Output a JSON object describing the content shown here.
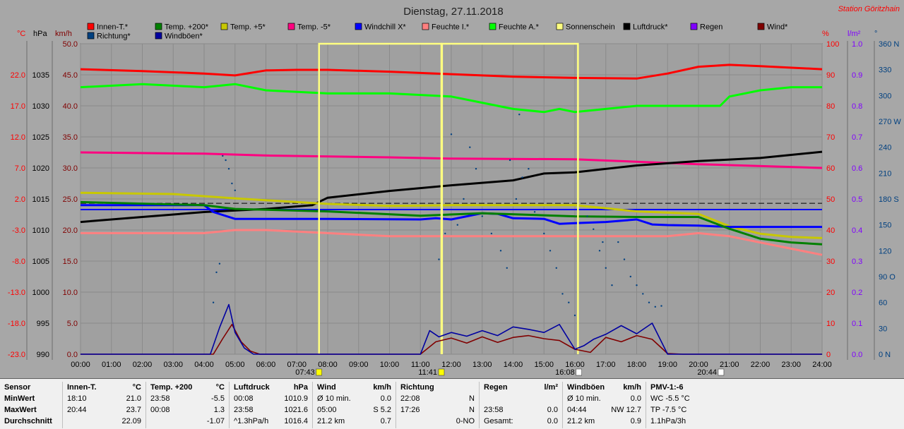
{
  "header": {
    "title": "Dienstag, 27.11.2018",
    "station": "Station Göritzhain",
    "station_color": "#ff0000"
  },
  "legend": [
    {
      "label": "Innen-T.*",
      "color": "#ff0000"
    },
    {
      "label": "Temp. +200*",
      "color": "#008000"
    },
    {
      "label": "Temp. +5*",
      "color": "#c8c800"
    },
    {
      "label": "Temp. -5*",
      "color": "#ff0080"
    },
    {
      "label": "Windchill X*",
      "color": "#0000ff"
    },
    {
      "label": "Feuchte I.*",
      "color": "#ff8080"
    },
    {
      "label": "Feuchte A.*",
      "color": "#00ff00"
    },
    {
      "label": "Sonnenschein",
      "color": "#ffff80"
    },
    {
      "label": "Luftdruck*",
      "color": "#000000"
    },
    {
      "label": "Regen",
      "color": "#8000ff"
    },
    {
      "label": "Wind*",
      "color": "#800000"
    },
    {
      "label": "Richtung*",
      "color": "#004080"
    },
    {
      "label": "Windböen*",
      "color": "#0000a0"
    }
  ],
  "axes": {
    "left_units": [
      {
        "label": "°C",
        "color": "#ff0000"
      },
      {
        "label": "hPa",
        "color": "#000000"
      },
      {
        "label": "km/h",
        "color": "#800000"
      }
    ],
    "right_units": [
      {
        "label": "%",
        "color": "#ff0000"
      },
      {
        "label": "l/m²",
        "color": "#8000ff"
      },
      {
        "label": "°",
        "color": "#004080"
      }
    ],
    "temp_ticks": [
      "22.0",
      "17.0",
      "12.0",
      "7.0",
      "2.0",
      "-3.0",
      "-8.0",
      "-13.0",
      "-18.0",
      "-23.0"
    ],
    "pressure_ticks": [
      "1035",
      "1030",
      "1025",
      "1020",
      "1015",
      "1010",
      "1005",
      "1000",
      "995",
      "990"
    ],
    "wind_ticks": [
      "50.0",
      "45.0",
      "40.0",
      "35.0",
      "30.0",
      "25.0",
      "20.0",
      "15.0",
      "10.0",
      "5.0",
      "0.0"
    ],
    "humidity_ticks": [
      "100",
      "90",
      "80",
      "70",
      "60",
      "50",
      "40",
      "30",
      "20",
      "10",
      "0"
    ],
    "rain_ticks": [
      "1.0",
      "0.9",
      "0.8",
      "0.7",
      "0.6",
      "0.5",
      "0.4",
      "0.3",
      "0.2",
      "0.1",
      "0.0"
    ],
    "dir_ticks": [
      "360 N",
      "330",
      "300",
      "270 W",
      "240",
      "210",
      "180 S",
      "150",
      "120",
      "90 O",
      "60",
      "30",
      "0 N"
    ],
    "time_ticks": [
      "00:00",
      "01:00",
      "02:00",
      "03:00",
      "04:00",
      "05:00",
      "06:00",
      "07:00",
      "08:00",
      "09:00",
      "10:00",
      "11:00",
      "12:00",
      "13:00",
      "14:00",
      "15:00",
      "16:00",
      "17:00",
      "18:00",
      "19:00",
      "20:00",
      "21:00",
      "22:00",
      "23:00",
      "24:00"
    ],
    "events": [
      {
        "label": "07:43",
        "hour": 7.72,
        "color": "#ffff00"
      },
      {
        "label": "11:41",
        "hour": 11.68,
        "color": "#ffff00"
      },
      {
        "label": "16:08",
        "hour": 16.13,
        "color": "#ffffff"
      },
      {
        "label": "20:44",
        "hour": 20.73,
        "color": "#ffffff"
      }
    ]
  },
  "chart_data": {
    "type": "line",
    "x_range": [
      "00:00",
      "24:00"
    ],
    "grid": true,
    "series": [
      {
        "name": "Innen-T.*",
        "color": "#ff0000",
        "axis": "temp",
        "x": [
          0,
          2,
          4,
          5,
          6,
          7,
          8,
          10,
          12,
          14,
          16,
          18,
          19,
          20,
          21,
          22,
          24
        ],
        "values": [
          22.9,
          22.6,
          22.2,
          21.9,
          22.7,
          22.8,
          22.8,
          22.5,
          22.1,
          21.7,
          21.5,
          21.4,
          22.2,
          23.3,
          23.6,
          23.4,
          22.9
        ]
      },
      {
        "name": "Feuchte A.*",
        "color": "#00ff00",
        "axis": "humidity",
        "x": [
          0,
          2,
          4,
          5,
          6,
          8,
          10,
          12,
          13,
          14,
          15,
          15.5,
          16,
          17,
          18,
          19,
          20,
          20.7,
          21,
          22,
          23,
          24
        ],
        "values": [
          86,
          87,
          86,
          87,
          85,
          84,
          84,
          83,
          81,
          79,
          78,
          79,
          78,
          79,
          80,
          80,
          80,
          80,
          83,
          85,
          86,
          86
        ]
      },
      {
        "name": "Temp. -5*",
        "color": "#ff0080",
        "axis": "temp",
        "x": [
          0,
          4,
          6,
          10,
          12,
          16,
          20,
          24
        ],
        "values": [
          9.5,
          9.3,
          9.0,
          8.7,
          8.5,
          8.4,
          7.6,
          7.0
        ]
      },
      {
        "name": "Luftdruck*",
        "color": "#000000",
        "axis": "pressure",
        "x": [
          0,
          2,
          4,
          6,
          7.5,
          8,
          10,
          12,
          14,
          15,
          16,
          18,
          20,
          22,
          23,
          24
        ],
        "values": [
          1011.3,
          1012.1,
          1012.9,
          1013.4,
          1014.0,
          1015.2,
          1016.3,
          1017.2,
          1018.0,
          1019.1,
          1019.3,
          1020.4,
          1021.1,
          1021.6,
          1022.1,
          1022.6
        ]
      },
      {
        "name": "Temp. +5*",
        "color": "#c8c800",
        "axis": "temp",
        "x": [
          0,
          3,
          5,
          7,
          8,
          10,
          12,
          16,
          18,
          19,
          20,
          21,
          22,
          23,
          24
        ],
        "values": [
          3.0,
          2.8,
          2.1,
          1.5,
          1.2,
          0.9,
          1.0,
          1.0,
          0.0,
          -0.2,
          -0.4,
          -2.4,
          -3.6,
          -4.1,
          -4.3
        ]
      },
      {
        "name": "Windchill X*",
        "color": "#0000ff",
        "axis": "temp",
        "x": [
          0,
          4,
          4.3,
          5,
          8,
          11,
          11.5,
          12,
          13,
          13.5,
          14,
          15,
          15.5,
          16,
          17,
          18,
          18.5,
          19,
          20,
          21,
          24
        ],
        "values": [
          1.0,
          1.0,
          -0.1,
          -1.2,
          -1.2,
          -1.3,
          -1.1,
          -1.3,
          -0.3,
          -0.4,
          -1.1,
          -1.2,
          -2.0,
          -1.9,
          -1.7,
          -1.3,
          -2.1,
          -2.2,
          -2.3,
          -2.5,
          -2.5
        ]
      },
      {
        "name": "Temp. +200*",
        "color": "#008000",
        "axis": "temp",
        "x": [
          0,
          4,
          5,
          8,
          11,
          13,
          16,
          18,
          19,
          20,
          21,
          22,
          23,
          24
        ],
        "values": [
          1.5,
          1.0,
          0.4,
          0.0,
          -0.7,
          -0.3,
          -0.8,
          -0.9,
          -0.9,
          -0.9,
          -2.8,
          -4.4,
          -5.0,
          -5.3
        ]
      },
      {
        "name": "Feuchte I.*",
        "color": "#ff8080",
        "axis": "humidity",
        "x": [
          0,
          4,
          5,
          6,
          8,
          10,
          12,
          14,
          16,
          18,
          19,
          20,
          21,
          22,
          24
        ],
        "values": [
          39,
          39,
          40,
          40,
          39,
          38,
          38,
          38,
          38,
          38,
          38,
          39,
          38,
          36,
          32
        ]
      },
      {
        "name": "Sonnenschein",
        "color": "#ffff80",
        "axis": "wind",
        "segments": [
          [
            7.72,
            11.68
          ],
          [
            11.7,
            16.1
          ]
        ],
        "level": 50
      },
      {
        "name": "Wind*",
        "color": "#800000",
        "axis": "wind",
        "x": [
          0,
          4.3,
          4.6,
          4.9,
          5.2,
          5.5,
          5.8,
          6,
          11,
          11.5,
          12,
          12.5,
          13,
          13.5,
          14,
          14.5,
          15,
          15.5,
          16,
          16.5,
          17,
          17.5,
          18,
          18.5,
          19,
          19.5,
          20,
          24
        ],
        "values": [
          0,
          0,
          2.5,
          4.8,
          2.0,
          0.5,
          0,
          0,
          0,
          2.0,
          2.6,
          1.8,
          2.8,
          1.9,
          2.7,
          3.0,
          2.5,
          2.2,
          0.8,
          0.3,
          2.7,
          2.0,
          3.0,
          2.4,
          0.1,
          0,
          0,
          0
        ]
      },
      {
        "name": "Windböen*",
        "color": "#0000a0",
        "axis": "wind",
        "x": [
          0,
          4.2,
          4.5,
          4.8,
          5.0,
          5.3,
          5.6,
          6,
          11,
          11.3,
          11.6,
          12,
          12.5,
          13,
          13.5,
          14,
          14.5,
          15,
          15.5,
          16,
          16.3,
          16.6,
          17,
          17.5,
          18,
          18.5,
          19,
          20,
          24
        ],
        "values": [
          0,
          0,
          4.3,
          8.0,
          3.5,
          1.0,
          0,
          0,
          0,
          3.8,
          2.8,
          3.5,
          2.9,
          3.8,
          3.0,
          4.4,
          4.0,
          3.5,
          4.8,
          0.8,
          1.4,
          2.4,
          3.2,
          4.6,
          3.3,
          5.0,
          0,
          0,
          0
        ]
      }
    ],
    "direction_scatter": {
      "name": "Richtung*",
      "color": "#004080",
      "axis": "direction",
      "points": [
        [
          4.6,
          230
        ],
        [
          4.7,
          225
        ],
        [
          4.8,
          215
        ],
        [
          4.9,
          198
        ],
        [
          5.0,
          190
        ],
        [
          4.5,
          105
        ],
        [
          4.4,
          95
        ],
        [
          4.3,
          60
        ],
        [
          11.6,
          110
        ],
        [
          11.8,
          140
        ],
        [
          12.2,
          150
        ],
        [
          12.4,
          180
        ],
        [
          12.8,
          215
        ],
        [
          13.0,
          160
        ],
        [
          13.3,
          140
        ],
        [
          13.6,
          120
        ],
        [
          13.8,
          100
        ],
        [
          14.1,
          180
        ],
        [
          14.3,
          205
        ],
        [
          14.5,
          215
        ],
        [
          14.7,
          165
        ],
        [
          15.0,
          140
        ],
        [
          15.2,
          120
        ],
        [
          15.4,
          100
        ],
        [
          15.6,
          70
        ],
        [
          15.8,
          60
        ],
        [
          16.0,
          45
        ],
        [
          16.4,
          160
        ],
        [
          16.6,
          145
        ],
        [
          16.8,
          120
        ],
        [
          17.0,
          100
        ],
        [
          17.2,
          80
        ],
        [
          17.4,
          130
        ],
        [
          17.6,
          110
        ],
        [
          17.8,
          90
        ],
        [
          18.0,
          80
        ],
        [
          18.2,
          70
        ],
        [
          18.4,
          60
        ],
        [
          18.6,
          55
        ],
        [
          18.8,
          56
        ],
        [
          12.6,
          240
        ],
        [
          14.2,
          278
        ],
        [
          13.9,
          225
        ],
        [
          12.0,
          255
        ],
        [
          16.9,
          130
        ]
      ]
    },
    "reference_lines": [
      {
        "axis": "temp",
        "value": 1.3,
        "style": "dashed",
        "color": "#000000"
      },
      {
        "axis": "temp",
        "value": 0.3,
        "style": "solid",
        "color": "#0000ff"
      }
    ]
  },
  "stats": {
    "headers": [
      "Sensor",
      "MinWert",
      "MaxWert",
      "Durchschnitt"
    ],
    "columns": [
      {
        "title": "Innen-T.",
        "unit": "°C",
        "rows": [
          [
            "18:10",
            "21.0"
          ],
          [
            "20:44",
            "23.7"
          ],
          [
            "",
            "22.09"
          ]
        ]
      },
      {
        "title": "Temp. +200",
        "unit": "°C",
        "rows": [
          [
            "23:58",
            "-5.5"
          ],
          [
            "00:08",
            "1.3"
          ],
          [
            "",
            "-1.07"
          ]
        ]
      },
      {
        "title": "Luftdruck",
        "unit": "hPa",
        "rows": [
          [
            "00:08",
            "1010.9"
          ],
          [
            "23:58",
            "1021.6"
          ],
          [
            "^1.3hPa/h",
            "1016.4"
          ]
        ]
      },
      {
        "title": "Wind",
        "unit": "km/h",
        "rows": [
          [
            "Ø 10 min.",
            "0.0"
          ],
          [
            "05:00",
            "S 5.2"
          ],
          [
            "21.2 km",
            "0.7"
          ]
        ]
      },
      {
        "title": "Richtung",
        "unit": "",
        "rows": [
          [
            "22:08",
            "N"
          ],
          [
            "17:26",
            "N"
          ],
          [
            "",
            "0-NO"
          ]
        ]
      },
      {
        "title": "Regen",
        "unit": "l/m²",
        "rows": [
          [
            "",
            ""
          ],
          [
            "23:58",
            "0.0"
          ],
          [
            "Gesamt:",
            "0.0"
          ]
        ]
      },
      {
        "title": "Windböen",
        "unit": "km/h",
        "rows": [
          [
            "Ø 10 min.",
            "0.0"
          ],
          [
            "04:44",
            "NW 12.7"
          ],
          [
            "21.2 km",
            "0.9"
          ]
        ]
      },
      {
        "title": "PMV-1:-6",
        "unit": "",
        "rows": [
          [
            "WC -5.5 °C",
            ""
          ],
          [
            "TP -7.5 °C",
            ""
          ],
          [
            "1.1hPa/3h",
            ""
          ]
        ]
      }
    ]
  }
}
